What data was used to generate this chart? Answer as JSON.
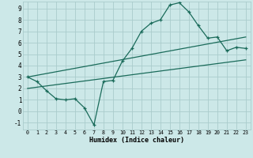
{
  "xlabel": "Humidex (Indice chaleur)",
  "bg_color": "#cce8e8",
  "grid_color": "#aacccc",
  "line_color": "#1a6b5a",
  "xlim": [
    -0.5,
    23.5
  ],
  "ylim": [
    -1.6,
    9.6
  ],
  "xticks": [
    0,
    1,
    2,
    3,
    4,
    5,
    6,
    7,
    8,
    9,
    10,
    11,
    12,
    13,
    14,
    15,
    16,
    17,
    18,
    19,
    20,
    21,
    22,
    23
  ],
  "yticks": [
    -1,
    0,
    1,
    2,
    3,
    4,
    5,
    6,
    7,
    8,
    9
  ],
  "line1_x": [
    0,
    1,
    2,
    3,
    4,
    5,
    6,
    7,
    8,
    9,
    10,
    11,
    12,
    13,
    14,
    15,
    16,
    17,
    18,
    19,
    20,
    21,
    22,
    23
  ],
  "line1_y": [
    3.0,
    2.6,
    1.8,
    1.1,
    1.0,
    1.1,
    0.3,
    -1.2,
    2.6,
    2.7,
    4.4,
    5.5,
    7.0,
    7.7,
    8.0,
    9.3,
    9.5,
    8.7,
    7.5,
    6.4,
    6.5,
    5.3,
    5.6,
    5.5
  ],
  "line2_x": [
    0,
    23
  ],
  "line2_y": [
    3.0,
    6.5
  ],
  "line3_x": [
    0,
    23
  ],
  "line3_y": [
    2.0,
    4.5
  ]
}
